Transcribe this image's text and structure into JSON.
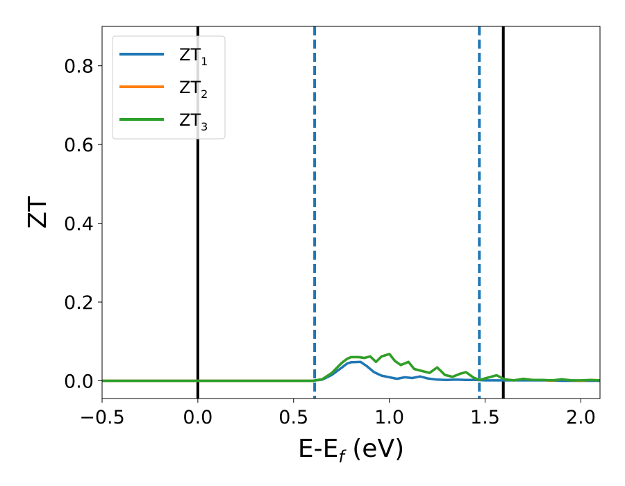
{
  "chart_data": {
    "type": "line",
    "xlabel": "E-E",
    "xlabel_sub": "f",
    "xlabel_unit": " (eV)",
    "ylabel": "ZT",
    "xlim": [
      -0.5,
      2.1
    ],
    "ylim": [
      -0.045,
      0.9
    ],
    "grid": false,
    "legend_placement": "top-left",
    "x_ticks": [
      {
        "value": -0.5,
        "label": "−0.5"
      },
      {
        "value": 0.0,
        "label": "0.0"
      },
      {
        "value": 0.5,
        "label": "0.5"
      },
      {
        "value": 1.0,
        "label": "1.0"
      },
      {
        "value": 1.5,
        "label": "1.5"
      },
      {
        "value": 2.0,
        "label": "2.0"
      }
    ],
    "y_ticks": [
      {
        "value": 0.0,
        "label": "0.0"
      },
      {
        "value": 0.2,
        "label": "0.2"
      },
      {
        "value": 0.4,
        "label": "0.4"
      },
      {
        "value": 0.6,
        "label": "0.6"
      },
      {
        "value": 0.8,
        "label": "0.8"
      }
    ],
    "vlines": [
      {
        "x": 0.0,
        "color": "#000000",
        "style": "solid"
      },
      {
        "x": 1.595,
        "color": "#000000",
        "style": "solid"
      },
      {
        "x": 0.61,
        "color": "#1f77b4",
        "style": "dashed"
      },
      {
        "x": 1.47,
        "color": "#1f77b4",
        "style": "dashed"
      }
    ],
    "series": [
      {
        "name": "ZT",
        "subscript": "1",
        "color": "#1f77b4",
        "x": [
          -0.5,
          0.0,
          0.5,
          0.6,
          0.65,
          0.7,
          0.75,
          0.78,
          0.8,
          0.85,
          0.88,
          0.92,
          0.96,
          1.0,
          1.04,
          1.08,
          1.12,
          1.16,
          1.2,
          1.25,
          1.3,
          1.35,
          1.4,
          1.45,
          1.5,
          1.55,
          1.6,
          1.65,
          1.7,
          1.8,
          1.9,
          2.0,
          2.1
        ],
        "y": [
          0,
          0,
          0,
          0.0,
          0.003,
          0.015,
          0.033,
          0.044,
          0.047,
          0.048,
          0.038,
          0.022,
          0.013,
          0.009,
          0.005,
          0.009,
          0.007,
          0.011,
          0.006,
          0.003,
          0.002,
          0.003,
          0.002,
          0.002,
          0.001,
          0.001,
          0.001,
          0.001,
          0.001,
          0.001,
          0.0,
          0.0,
          0.0
        ]
      },
      {
        "name": "ZT",
        "subscript": "2",
        "color": "#ff7f0e",
        "x": [
          -0.5,
          0.0,
          0.5,
          0.6,
          0.65,
          0.7,
          0.75,
          0.78,
          0.8,
          0.84,
          0.87,
          0.9,
          0.93,
          0.96,
          1.0,
          1.03,
          1.06,
          1.1,
          1.13,
          1.17,
          1.21,
          1.25,
          1.29,
          1.33,
          1.37,
          1.4,
          1.44,
          1.47,
          1.5,
          1.53,
          1.56,
          1.6,
          1.65,
          1.7,
          1.75,
          1.8,
          1.85,
          1.9,
          1.95,
          2.0,
          2.05,
          2.1
        ],
        "y": [
          0,
          0,
          0,
          0.0,
          0.004,
          0.02,
          0.045,
          0.056,
          0.06,
          0.06,
          0.058,
          0.062,
          0.048,
          0.062,
          0.068,
          0.05,
          0.04,
          0.048,
          0.03,
          0.025,
          0.02,
          0.034,
          0.015,
          0.01,
          0.018,
          0.022,
          0.008,
          0.002,
          0.006,
          0.01,
          0.014,
          0.004,
          0.001,
          0.005,
          0.002,
          0.002,
          0.0,
          0.004,
          0.001,
          0.0,
          0.002,
          0.001
        ]
      },
      {
        "name": "ZT",
        "subscript": "3",
        "color": "#2ca02c",
        "x": [
          -0.5,
          0.0,
          0.5,
          0.6,
          0.65,
          0.7,
          0.75,
          0.78,
          0.8,
          0.84,
          0.87,
          0.9,
          0.93,
          0.96,
          1.0,
          1.03,
          1.06,
          1.1,
          1.13,
          1.17,
          1.21,
          1.25,
          1.29,
          1.33,
          1.37,
          1.4,
          1.44,
          1.47,
          1.5,
          1.53,
          1.56,
          1.6,
          1.65,
          1.7,
          1.75,
          1.8,
          1.85,
          1.9,
          1.95,
          2.0,
          2.05,
          2.1
        ],
        "y": [
          0,
          0,
          0,
          0.0,
          0.004,
          0.02,
          0.045,
          0.056,
          0.06,
          0.06,
          0.058,
          0.062,
          0.048,
          0.062,
          0.068,
          0.05,
          0.04,
          0.048,
          0.03,
          0.025,
          0.02,
          0.034,
          0.015,
          0.01,
          0.018,
          0.022,
          0.008,
          0.002,
          0.006,
          0.01,
          0.014,
          0.004,
          0.001,
          0.005,
          0.002,
          0.002,
          0.001,
          0.004,
          0.001,
          0.001,
          0.002,
          0.001
        ]
      }
    ]
  }
}
